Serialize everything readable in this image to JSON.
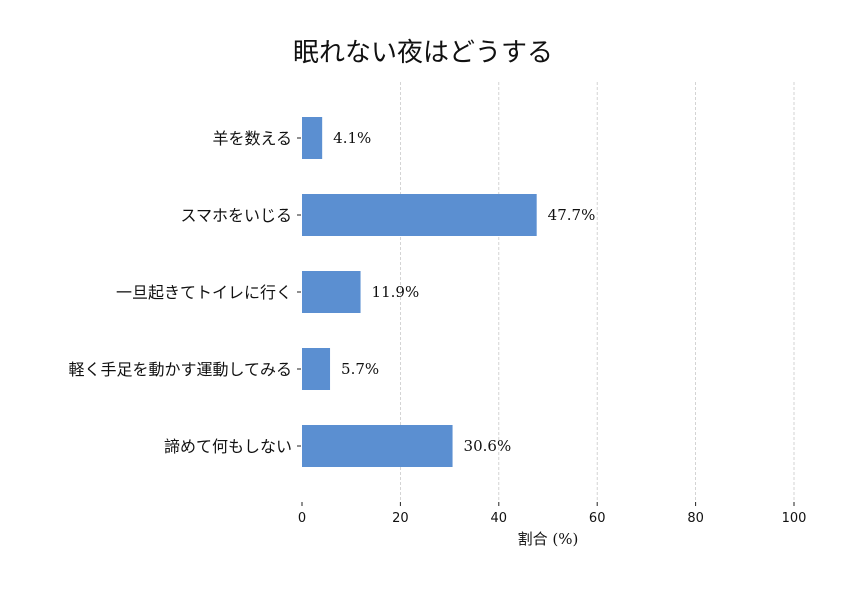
{
  "chart_data": {
    "type": "bar",
    "orientation": "horizontal",
    "title": "眠れない夜はどうする",
    "xlabel": "割合 (%)",
    "ylabel": "",
    "xlim": [
      0,
      100
    ],
    "xticks": [
      0,
      20,
      40,
      60,
      80,
      100
    ],
    "grid": true,
    "categories": [
      "羊を数える",
      "スマホをいじる",
      "一旦起きてトイレに行く",
      "軽く手足を動かす運動してみる",
      "諦めて何もしない"
    ],
    "values": [
      4.1,
      47.7,
      11.9,
      5.7,
      30.6
    ],
    "value_labels": [
      "4.1%",
      "47.7%",
      "11.9%",
      "5.7%",
      "30.6%"
    ],
    "bar_color": "#5b8fd1"
  }
}
